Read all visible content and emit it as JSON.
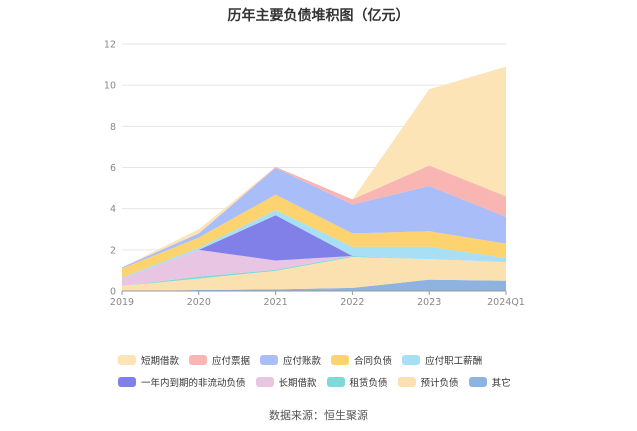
{
  "chart_data": {
    "type": "area",
    "title": "历年主要负债堆积图（亿元）",
    "categories": [
      "2019",
      "2020",
      "2021",
      "2022",
      "2023",
      "2024Q1"
    ],
    "ylim": [
      0,
      12
    ],
    "yticks": [
      0,
      2,
      4,
      6,
      8,
      10,
      12
    ],
    "grid": true,
    "legend_position": "bottom",
    "series": [
      {
        "name": "其它",
        "color": "#8fb3e0",
        "values": [
          0.0,
          0.05,
          0.08,
          0.15,
          0.55,
          0.5
        ]
      },
      {
        "name": "预计负债",
        "color": "#fce1b0",
        "values": [
          0.25,
          0.55,
          0.9,
          1.5,
          1.0,
          0.9
        ]
      },
      {
        "name": "租赁负债",
        "color": "#7fd9d9",
        "values": [
          0.0,
          0.1,
          0.05,
          0.05,
          0.0,
          0.0
        ]
      },
      {
        "name": "长期借款",
        "color": "#e8c5e3",
        "values": [
          0.35,
          1.3,
          0.45,
          0.0,
          0.0,
          0.0
        ]
      },
      {
        "name": "一年内到期的非流动负债",
        "color": "#8080e8",
        "values": [
          0.0,
          0.0,
          2.2,
          0.0,
          0.0,
          0.0
        ]
      },
      {
        "name": "应付职工薪酬",
        "color": "#a8dff5",
        "values": [
          0.05,
          0.1,
          0.25,
          0.45,
          0.6,
          0.2
        ]
      },
      {
        "name": "合同负债",
        "color": "#fcd36e",
        "values": [
          0.45,
          0.5,
          0.75,
          0.65,
          0.75,
          0.7
        ]
      },
      {
        "name": "应付账款",
        "color": "#a9bef8",
        "values": [
          0.05,
          0.2,
          1.3,
          1.4,
          2.2,
          1.3
        ]
      },
      {
        "name": "应付票据",
        "color": "#f8b5b1",
        "values": [
          0.0,
          0.0,
          0.05,
          0.25,
          1.0,
          1.0
        ]
      },
      {
        "name": "短期借款",
        "color": "#fde4b7",
        "values": [
          0.0,
          0.2,
          0.0,
          0.0,
          3.7,
          6.3
        ]
      }
    ],
    "legend_rows": [
      [
        "短期借款",
        "应付票据",
        "应付账款",
        "合同负债",
        "应付职工薪酬"
      ],
      [
        "一年内到期的非流动负债",
        "长期借款",
        "租赁负债",
        "预计负债",
        "其它"
      ]
    ]
  },
  "source_text": "数据来源：恒生聚源"
}
